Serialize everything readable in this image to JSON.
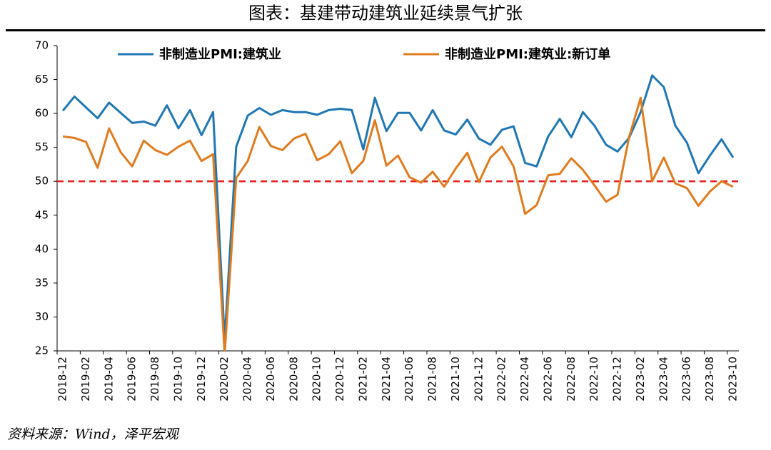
{
  "chart_data": {
    "type": "line",
    "title": "图表：基建带动建筑业延续景气扩张",
    "source": "资料来源：Wind，泽平宏观",
    "categories": [
      "2018-12",
      null,
      "2019-02",
      null,
      "2019-04",
      null,
      "2019-06",
      null,
      "2019-08",
      null,
      "2019-10",
      null,
      "2019-12",
      null,
      "2020-02",
      null,
      "2020-04",
      null,
      "2020-06",
      null,
      "2020-08",
      null,
      "2020-10",
      null,
      "2020-12",
      null,
      "2021-02",
      null,
      "2021-04",
      null,
      "2021-06",
      null,
      "2021-08",
      null,
      "2021-10",
      null,
      "2021-12",
      null,
      "2022-02",
      null,
      "2022-04",
      null,
      "2022-06",
      null,
      "2022-08",
      null,
      "2022-10",
      null,
      "2022-12",
      null,
      "2023-02",
      null,
      "2023-04",
      null,
      "2023-06",
      null,
      "2023-08",
      null,
      "2023-10"
    ],
    "series": [
      {
        "name": "非制造业PMI:建筑业",
        "color": "#1f77b4",
        "values": [
          60.4,
          62.5,
          60.9,
          59.3,
          61.6,
          60.1,
          58.6,
          58.8,
          58.2,
          61.2,
          57.8,
          60.5,
          56.8,
          60.2,
          26.6,
          55.1,
          59.7,
          60.8,
          59.8,
          60.5,
          60.2,
          60.2,
          59.8,
          60.5,
          60.7,
          60.5,
          54.7,
          62.3,
          57.4,
          60.1,
          60.1,
          57.5,
          60.5,
          57.5,
          56.9,
          59.1,
          56.3,
          55.4,
          57.6,
          58.1,
          52.7,
          52.2,
          56.6,
          59.2,
          56.5,
          60.2,
          58.2,
          55.4,
          54.4,
          56.4,
          60.2,
          65.6,
          63.9,
          58.2,
          55.7,
          51.2,
          53.8,
          56.2,
          53.5
        ]
      },
      {
        "name": "非制造业PMI:建筑业:新订单",
        "color": "#e07b1e",
        "values": [
          56.6,
          56.4,
          55.8,
          52.0,
          57.8,
          54.3,
          52.2,
          56.0,
          54.6,
          53.9,
          55.1,
          56.0,
          53.0,
          54.0,
          24.5,
          50.5,
          53.0,
          58.0,
          55.2,
          54.6,
          56.3,
          57.0,
          53.1,
          54.0,
          55.9,
          51.2,
          53.0,
          59.0,
          52.3,
          53.8,
          50.6,
          49.8,
          51.4,
          49.2,
          51.9,
          54.2,
          49.9,
          53.5,
          55.1,
          52.2,
          45.2,
          46.5,
          50.9,
          51.1,
          53.4,
          51.7,
          49.4,
          47.0,
          48.0,
          56.5,
          62.3,
          50.0,
          53.5,
          49.7,
          49.0,
          46.4,
          48.5,
          50.0,
          49.2
        ]
      }
    ],
    "reference_line": {
      "value": 50,
      "color": "#e8211c"
    },
    "ylim": [
      25,
      70
    ],
    "yticks": [
      25,
      30,
      35,
      40,
      45,
      50,
      55,
      60,
      65,
      70
    ]
  }
}
